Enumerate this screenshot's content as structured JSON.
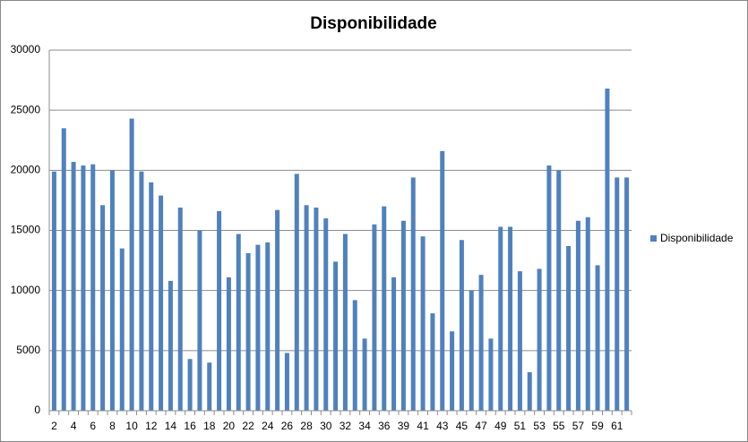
{
  "chart_data": {
    "type": "bar",
    "title": "Disponibilidade",
    "categories": [
      "2",
      null,
      "4",
      null,
      "6",
      null,
      "8",
      null,
      "10",
      null,
      "12",
      null,
      "14",
      null,
      "16",
      null,
      "18",
      null,
      "20",
      null,
      "22",
      null,
      "24",
      null,
      "26",
      null,
      "28",
      null,
      "30",
      null,
      "32",
      null,
      "34",
      null,
      "36",
      null,
      "39",
      null,
      "41",
      null,
      "43",
      null,
      "45",
      null,
      "47",
      null,
      "49",
      null,
      "51",
      null,
      "53",
      null,
      "55",
      null,
      "57",
      null,
      "59",
      null,
      "61",
      null
    ],
    "series": [
      {
        "name": "Disponibilidade",
        "color": "#4f81bd",
        "values": [
          19900,
          23500,
          20700,
          20400,
          20500,
          17100,
          20000,
          13500,
          24300,
          19900,
          19000,
          17900,
          10800,
          16900,
          4300,
          15000,
          4000,
          16600,
          11100,
          14700,
          13100,
          13800,
          14000,
          16700,
          4800,
          19700,
          17100,
          16900,
          16000,
          12400,
          14700,
          9200,
          6000,
          15500,
          17000,
          11100,
          15800,
          19400,
          14500,
          8100,
          21600,
          6600,
          14200,
          10000,
          11300,
          6000,
          15300,
          15300,
          11600,
          3200,
          11800,
          20400,
          20000,
          13700,
          15800,
          16100,
          12100,
          26800,
          19400,
          19400
        ]
      }
    ],
    "ylim": [
      0,
      30000
    ],
    "yticks": [
      0,
      5000,
      10000,
      15000,
      20000,
      25000,
      30000
    ],
    "grid": true,
    "legend": "right"
  }
}
